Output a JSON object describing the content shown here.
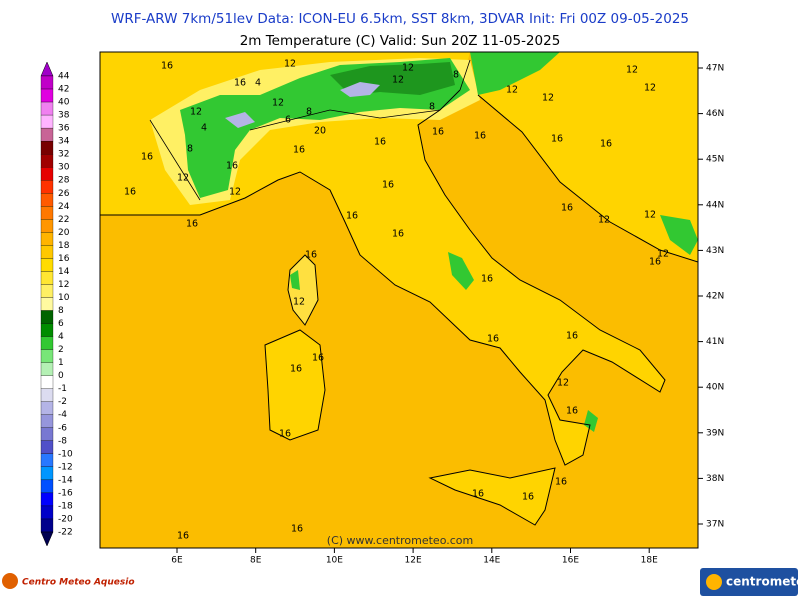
{
  "header": {
    "title": "WRF-ARW 7km/51lev  Data: ICON-EU 6.5km, SST 8km, 3DVAR  Init: Fri 00Z 09-05-2025",
    "subtitle": "2m Temperature (C)  Valid: Sun 20Z 11-05-2025"
  },
  "colorbar": {
    "levels": [
      44,
      42,
      40,
      38,
      36,
      34,
      32,
      30,
      28,
      26,
      24,
      22,
      20,
      18,
      16,
      14,
      12,
      10,
      8,
      6,
      4,
      2,
      1,
      0,
      -1,
      -2,
      -4,
      -6,
      -8,
      -10,
      -12,
      -14,
      -16,
      -18,
      -20,
      -22
    ],
    "colors": [
      "#a000c8",
      "#c000c8",
      "#e000e0",
      "#f080f0",
      "#ffb4ff",
      "#c86496",
      "#780000",
      "#a00000",
      "#e60000",
      "#ff3200",
      "#ff5a00",
      "#ff7800",
      "#ff9600",
      "#ffb400",
      "#ffc800",
      "#ffdc00",
      "#ffe632",
      "#fff064",
      "#fffaa0",
      "#006400",
      "#008c00",
      "#32c832",
      "#78e678",
      "#b4f0b4",
      "#ffffff",
      "#dcdcf0",
      "#b4b4e6",
      "#9696dc",
      "#7878d2",
      "#5050c8",
      "#2878ff",
      "#0096ff",
      "#0050ff",
      "#0000ff",
      "#0000c8",
      "#00008c",
      "#000050"
    ]
  },
  "lon_labels": [
    "6E",
    "8E",
    "10E",
    "12E",
    "14E",
    "16E",
    "18E"
  ],
  "lat_labels": [
    "47N",
    "46N",
    "45N",
    "44N",
    "43N",
    "42N",
    "41N",
    "40N",
    "39N",
    "38N",
    "37N"
  ],
  "contour_labels": [
    16,
    12,
    16,
    4,
    12,
    4,
    12,
    8,
    20,
    6,
    16,
    8,
    16,
    12,
    16,
    12,
    16,
    16,
    16,
    16,
    16,
    16,
    16,
    16,
    16,
    16,
    12,
    12,
    12,
    12,
    16,
    12,
    12,
    12,
    16,
    16,
    12,
    16,
    16,
    16,
    16,
    16,
    16,
    12,
    16,
    16,
    16,
    16,
    16,
    16,
    12,
    8,
    8,
    12
  ],
  "watermark": "(C) www.centrometeo.com",
  "logos": {
    "left": "Centro Meteo Aquesio",
    "right": "centrometeo"
  }
}
